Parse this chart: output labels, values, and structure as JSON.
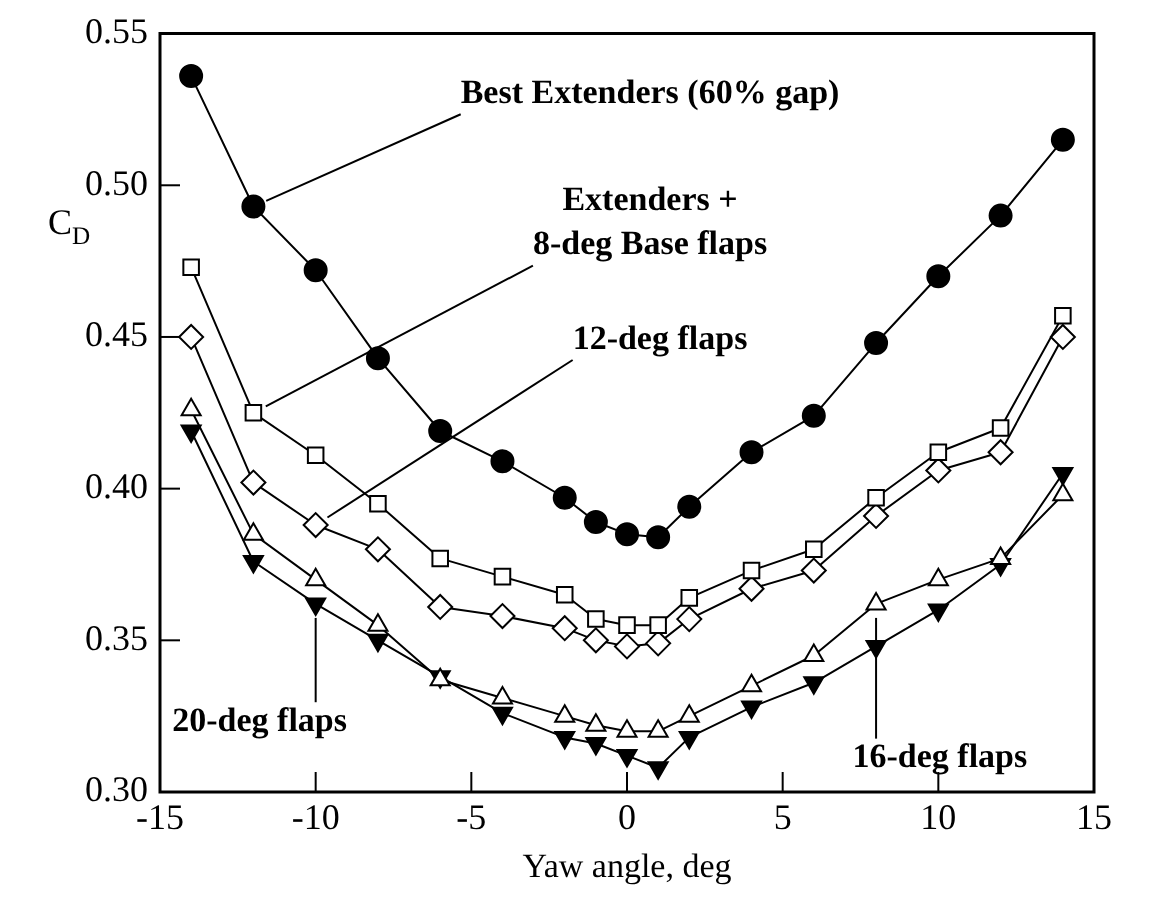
{
  "chart_data": {
    "type": "line",
    "xlabel": "Yaw angle, deg",
    "ylabel": "C$_{D}$",
    "x": [
      -14,
      -12,
      -10,
      -8,
      -6,
      -4,
      -2,
      -1,
      0,
      1,
      2,
      4,
      6,
      8,
      10,
      12,
      14
    ],
    "series": [
      {
        "color": "#000000",
        "marker": "circle",
        "values": [
          0.536,
          0.493,
          0.472,
          0.443,
          0.419,
          0.409,
          0.397,
          0.389,
          0.385,
          0.384,
          0.394,
          0.412,
          0.424,
          0.448,
          0.47,
          0.49,
          0.515
        ]
      },
      {
        "color": "#000000",
        "marker": "square-open",
        "values": [
          0.473,
          0.425,
          0.411,
          0.395,
          0.377,
          0.371,
          0.365,
          0.357,
          0.355,
          0.355,
          0.364,
          0.373,
          0.38,
          0.397,
          0.412,
          0.42,
          0.457
        ]
      },
      {
        "color": "#000000",
        "marker": "diamond-open",
        "values": [
          0.45,
          0.402,
          0.388,
          0.38,
          0.361,
          0.358,
          0.354,
          0.35,
          0.348,
          0.349,
          0.357,
          0.367,
          0.373,
          0.391,
          0.406,
          0.412,
          0.45
        ]
      },
      {
        "color": "#000000",
        "marker": "triangle-open",
        "values": [
          0.426,
          0.385,
          0.37,
          0.355,
          0.337,
          0.331,
          0.325,
          0.322,
          0.32,
          0.32,
          0.325,
          0.335,
          0.345,
          0.362,
          0.37,
          0.377,
          0.398
        ]
      },
      {
        "color": "#000000",
        "marker": "triangle-down",
        "values": [
          0.419,
          0.376,
          0.362,
          0.35,
          0.338,
          0.326,
          0.318,
          0.316,
          0.312,
          0.308,
          0.318,
          0.328,
          0.336,
          0.348,
          0.36,
          0.375,
          0.405
        ]
      }
    ],
    "xlim": [
      -15,
      15
    ],
    "xticks": [
      -15,
      -10,
      -5,
      0,
      5,
      10,
      15
    ],
    "ylim": [
      0.3,
      0.55
    ],
    "yticks": [
      {
        "value": 0.3,
        "label": "0.30"
      },
      0.35,
      {
        "value": 0.4,
        "label": "0.40"
      },
      0.45,
      {
        "value": 0.5,
        "label": "0.50"
      },
      0.55
    ],
    "annotations": [
      {
        "text": "Best Extenders (60% gap)",
        "x": -12,
        "y": 0.493
      },
      {
        "text": "Extenders + 8-deg Base flaps",
        "x": -12,
        "y": 0.425
      },
      {
        "text": "12-deg flaps",
        "x": -10,
        "y": 0.388
      },
      {
        "text": "16-deg flaps",
        "x": 8,
        "y": 0.362
      },
      {
        "text": "20-deg flaps",
        "x": -10,
        "y": 0.362
      }
    ],
    "grid": false,
    "legend": false
  }
}
